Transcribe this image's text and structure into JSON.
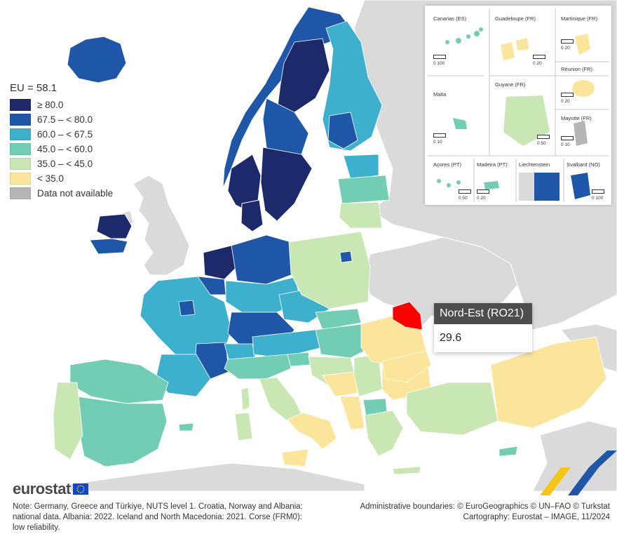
{
  "legend": {
    "title": "EU = 58.1",
    "classes": [
      {
        "label": "≥ 80.0",
        "color": "#1c2a6b"
      },
      {
        "label": "67.5 – < 80.0",
        "color": "#1f57a8"
      },
      {
        "label": "60.0 – < 67.5",
        "color": "#3cb0cc"
      },
      {
        "label": "45.0 – < 60.0",
        "color": "#72cdb5"
      },
      {
        "label": "35.0 – < 45.0",
        "color": "#c9e7b3"
      },
      {
        "label": "< 35.0",
        "color": "#fbe59a"
      },
      {
        "label": "Data not available",
        "color": "#b5b5b5"
      }
    ]
  },
  "colors": {
    "highlight": "#ff0000",
    "non_eu": "#dadada",
    "sea": "#ffffff"
  },
  "insets": [
    {
      "label": "Canarias (ES)",
      "scale": "0   100"
    },
    {
      "label": "Guadeloupe (FR)",
      "scale": "0   20"
    },
    {
      "label": "Martinique (FR)",
      "scale": "0   20"
    },
    {
      "label": "Réunion (FR)",
      "scale": "0   20"
    },
    {
      "label": "Malta",
      "scale": "0   10"
    },
    {
      "label": "Guyane (FR)",
      "scale": "0  50"
    },
    {
      "label": "Mayotte (FR)",
      "scale": "0   10"
    },
    {
      "label": "Açores (PT)",
      "scale": "0   50"
    },
    {
      "label": "Madeira (PT)",
      "scale": "0   20"
    },
    {
      "label": "Liechtenstein",
      "scale": ""
    },
    {
      "label": "Svalbard (NO)",
      "scale": "0  100"
    }
  ],
  "tooltip": {
    "region": "Nord-Est (RO21)",
    "value": "29.6"
  },
  "brand": "eurostat",
  "note": "Note: Germany, Greece and Türkiye, NUTS level 1. Croatia, Norway and Albania: national data. Albania: 2022. Iceland and North Macedonia: 2021. Corse (FRM0): low reliability.",
  "credits": {
    "line1": "Administrative boundaries: © EuroGeographics © UN–FAO © Turkstat",
    "line2": "Cartography: Eurostat – IMAGE, 11/2024"
  }
}
